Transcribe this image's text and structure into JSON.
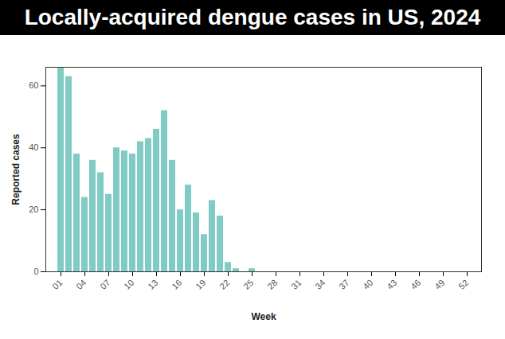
{
  "chart_data": {
    "type": "bar",
    "title": "Locally-acquired dengue cases in US, 2024",
    "x_label": "Week",
    "y_label": "Reported cases",
    "categories": [
      "01",
      null,
      null,
      "04",
      null,
      null,
      "07",
      null,
      null,
      "10",
      null,
      null,
      "13",
      null,
      null,
      "16",
      null,
      null,
      "19",
      null,
      null,
      "22",
      null,
      null,
      "25",
      null,
      null,
      "28",
      null,
      null,
      "31",
      null,
      null,
      "34",
      null,
      null,
      "37",
      null,
      null,
      "40",
      null,
      null,
      "43",
      null,
      null,
      "46",
      null,
      null,
      "49",
      null,
      null,
      "52"
    ],
    "values": [
      66,
      63,
      38,
      24,
      36,
      32,
      25,
      40,
      39,
      38,
      42,
      43,
      46,
      52,
      36,
      20,
      28,
      19,
      12,
      23,
      18,
      3,
      1,
      0,
      1,
      0,
      0,
      0,
      0,
      0,
      0,
      0,
      0,
      0,
      0,
      0,
      0,
      0,
      0,
      0,
      0,
      0,
      0,
      0,
      0,
      0,
      0,
      0,
      0,
      0,
      0,
      0
    ],
    "color": "#80cbc4",
    "ylim": [
      0,
      66
    ],
    "yticks": [
      0,
      20,
      40,
      60
    ],
    "grid": false
  }
}
